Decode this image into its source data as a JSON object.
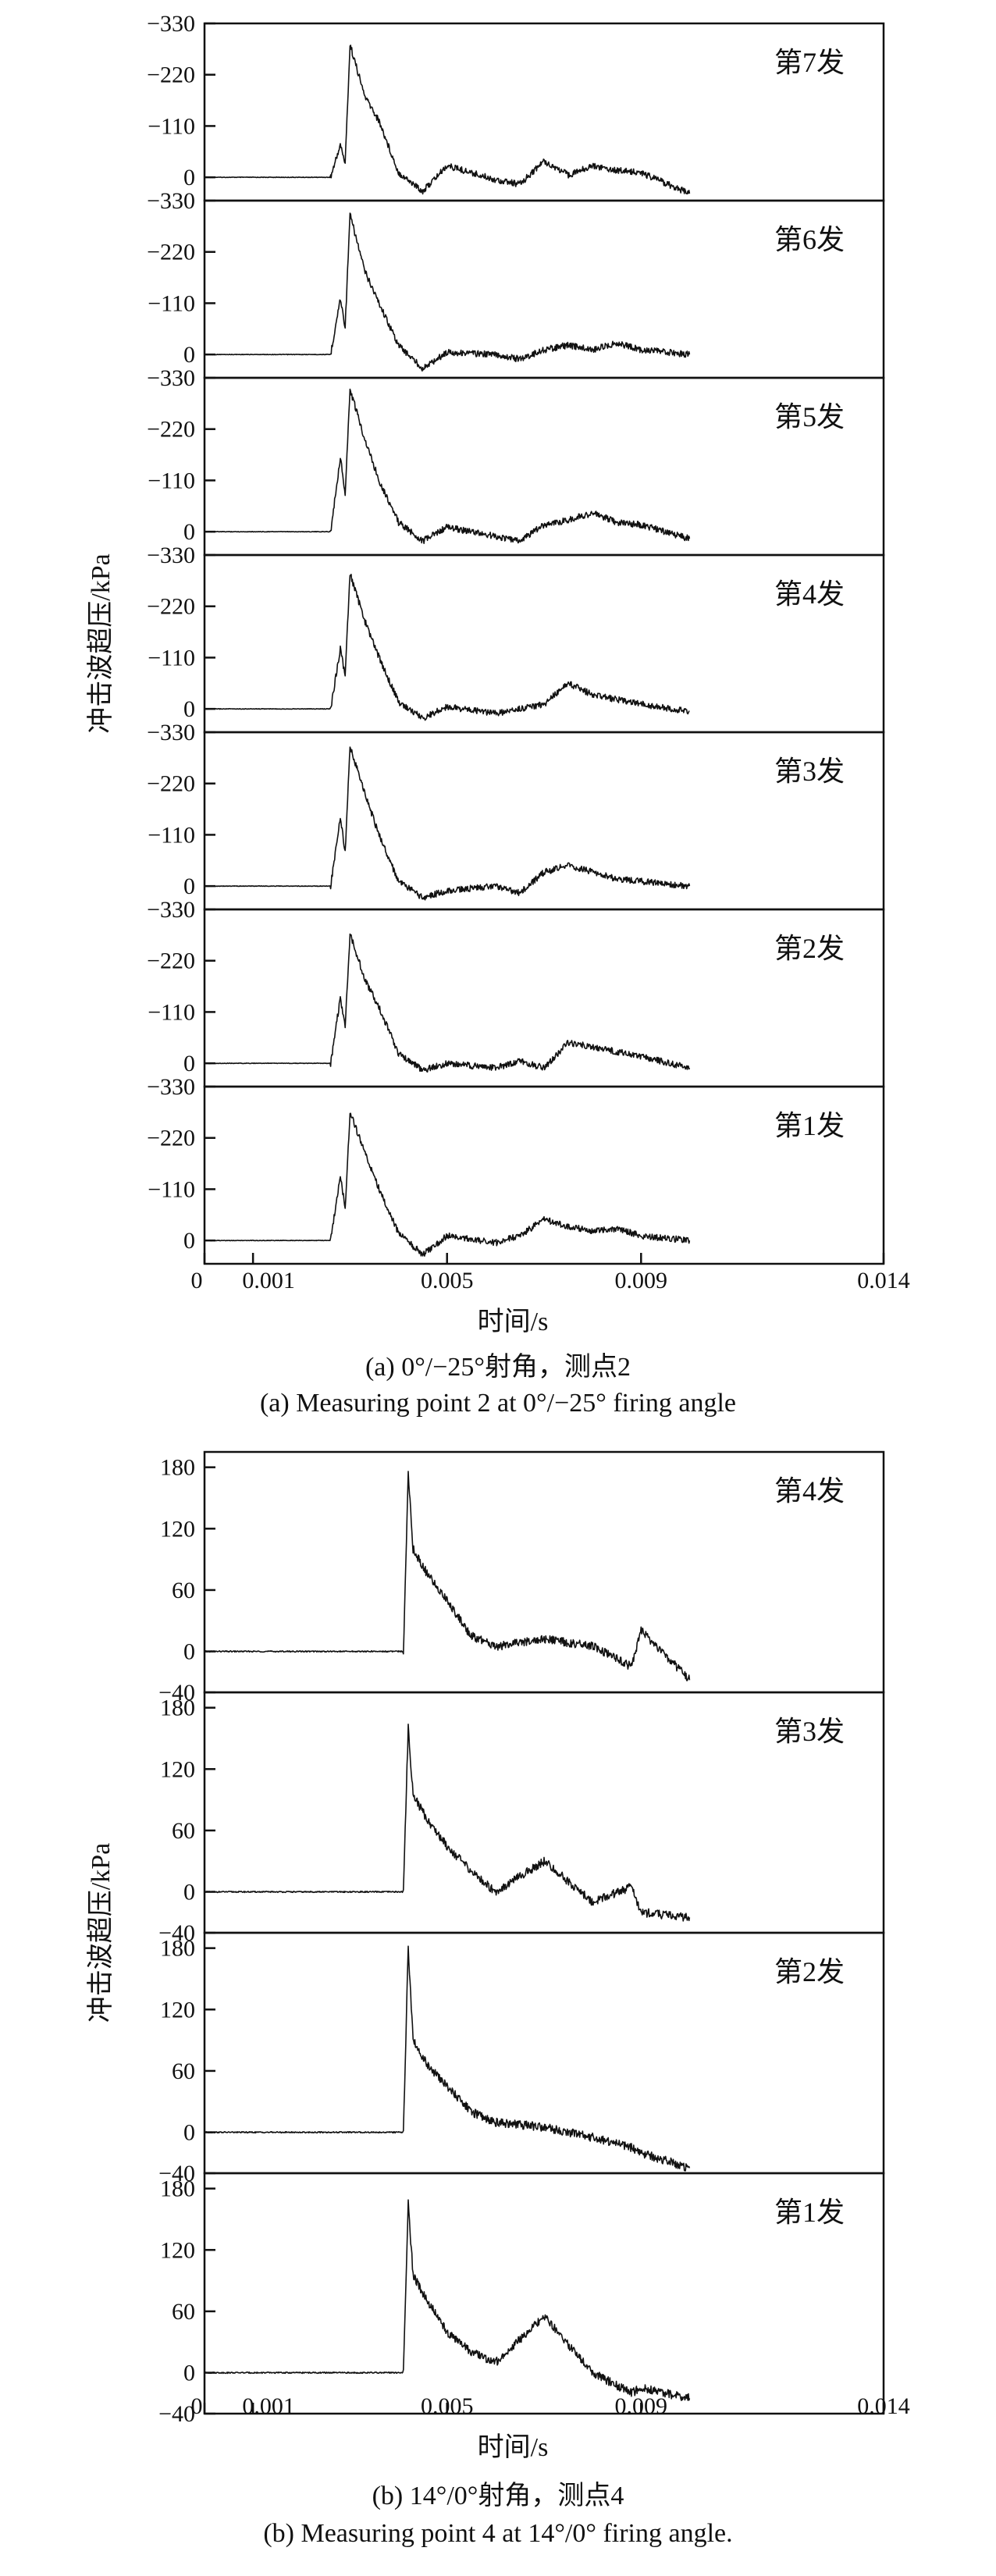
{
  "chart_data": [
    {
      "type": "line",
      "caption_cn": "(a) 0°/−25°射角，测点2",
      "caption_en": "(a) Measuring point 2 at  0°/−25° firing angle",
      "xlabel": "时间/s",
      "ylabel": "冲击波超压/kPa",
      "x_ticks": [
        0,
        0.001,
        0.005,
        0.009,
        0.014
      ],
      "x_tick_labels": [
        "0",
        "0.001",
        "0.005",
        "0.009",
        "0.014"
      ],
      "xlim": [
        0,
        0.014
      ],
      "y_ticks": [
        0,
        -110,
        -220,
        -330
      ],
      "y_tick_labels": [
        "0",
        "−110",
        "−220",
        "−330"
      ],
      "ylim": [
        50,
        -330
      ],
      "series": [
        {
          "name": "第7发",
          "x": [
            0,
            0.0026,
            0.0028,
            0.0029,
            0.003,
            0.0033,
            0.0036,
            0.004,
            0.0045,
            0.005,
            0.006,
            0.0065,
            0.007,
            0.0075,
            0.008,
            0.0085,
            0.009,
            0.01
          ],
          "values": [
            0,
            0,
            -70,
            -30,
            -285,
            -175,
            -120,
            -10,
            30,
            -25,
            5,
            15,
            -35,
            -5,
            -25,
            -15,
            -10,
            35
          ]
        },
        {
          "name": "第6发",
          "x": [
            0,
            0.0026,
            0.0028,
            0.0029,
            0.003,
            0.0033,
            0.0036,
            0.004,
            0.0045,
            0.005,
            0.006,
            0.0065,
            0.007,
            0.0075,
            0.008,
            0.0085,
            0.009,
            0.01
          ],
          "values": [
            0,
            0,
            -120,
            -60,
            -300,
            -180,
            -110,
            -20,
            30,
            -5,
            0,
            10,
            -10,
            -20,
            -10,
            -25,
            -10,
            0
          ]
        },
        {
          "name": "第5发",
          "x": [
            0,
            0.0026,
            0.0028,
            0.0029,
            0.003,
            0.0033,
            0.0036,
            0.004,
            0.0045,
            0.005,
            0.006,
            0.0065,
            0.007,
            0.0075,
            0.008,
            0.0085,
            0.009,
            0.01
          ],
          "values": [
            0,
            0,
            -160,
            -80,
            -305,
            -200,
            -110,
            -20,
            20,
            -10,
            10,
            20,
            -15,
            -25,
            -40,
            -20,
            -15,
            15
          ]
        },
        {
          "name": "第4发",
          "x": [
            0,
            0.0026,
            0.0028,
            0.0029,
            0.003,
            0.0033,
            0.0036,
            0.004,
            0.0045,
            0.005,
            0.006,
            0.0065,
            0.007,
            0.0075,
            0.008,
            0.0085,
            0.009,
            0.01
          ],
          "values": [
            0,
            0,
            -130,
            -70,
            -290,
            -190,
            -110,
            -15,
            20,
            -5,
            10,
            0,
            -10,
            -55,
            -30,
            -20,
            -10,
            5
          ]
        },
        {
          "name": "第3发",
          "x": [
            0,
            0.0026,
            0.0028,
            0.0029,
            0.003,
            0.0033,
            0.0036,
            0.004,
            0.0045,
            0.005,
            0.006,
            0.0065,
            0.007,
            0.0075,
            0.008,
            0.0085,
            0.009,
            0.01
          ],
          "values": [
            0,
            0,
            -150,
            -70,
            -300,
            -200,
            -110,
            -10,
            25,
            10,
            0,
            15,
            -30,
            -45,
            -30,
            -15,
            -10,
            0
          ]
        },
        {
          "name": "第2发",
          "x": [
            0,
            0.0026,
            0.0028,
            0.0029,
            0.003,
            0.0033,
            0.0036,
            0.004,
            0.0045,
            0.005,
            0.006,
            0.0065,
            0.007,
            0.0075,
            0.008,
            0.0085,
            0.009,
            0.01
          ],
          "values": [
            0,
            0,
            -140,
            -80,
            -280,
            -180,
            -120,
            -20,
            15,
            0,
            10,
            -5,
            10,
            -45,
            -35,
            -25,
            -15,
            10
          ]
        },
        {
          "name": "第1发",
          "x": [
            0,
            0.0026,
            0.0028,
            0.0029,
            0.003,
            0.0033,
            0.0036,
            0.004,
            0.0045,
            0.005,
            0.006,
            0.0065,
            0.007,
            0.0075,
            0.008,
            0.0085,
            0.009,
            0.01
          ],
          "values": [
            0,
            0,
            -140,
            -70,
            -275,
            -190,
            -110,
            -15,
            30,
            -10,
            5,
            -10,
            -45,
            -30,
            -20,
            -25,
            -10,
            0
          ]
        }
      ]
    },
    {
      "type": "line",
      "caption_cn": "(b) 14°/0°射角，测点4",
      "caption_en": "(b) Measuring point 4 at 14°/0° firing angle.",
      "xlabel": "时间/s",
      "ylabel": "冲击波超压/kPa",
      "x_ticks": [
        0,
        0.001,
        0.005,
        0.009,
        0.014
      ],
      "x_tick_labels": [
        "0",
        "0.001",
        "0.005",
        "0.009",
        "0.014"
      ],
      "xlim": [
        0,
        0.014
      ],
      "y_ticks": [
        -40,
        0,
        60,
        120,
        180
      ],
      "y_tick_labels": [
        "−40",
        "0",
        "60",
        "120",
        "180"
      ],
      "ylim": [
        -40,
        195
      ],
      "series": [
        {
          "name": "第4发",
          "x": [
            0,
            0.0041,
            0.0042,
            0.0043,
            0.0046,
            0.005,
            0.0055,
            0.006,
            0.007,
            0.008,
            0.0088,
            0.009,
            0.01
          ],
          "values": [
            0,
            0,
            175,
            100,
            75,
            50,
            15,
            5,
            12,
            5,
            -15,
            20,
            -28
          ]
        },
        {
          "name": "第3发",
          "x": [
            0,
            0.0041,
            0.0042,
            0.0043,
            0.0046,
            0.005,
            0.0055,
            0.006,
            0.007,
            0.008,
            0.0088,
            0.009,
            0.01
          ],
          "values": [
            0,
            0,
            160,
            95,
            70,
            45,
            20,
            0,
            30,
            -10,
            5,
            -20,
            -25
          ]
        },
        {
          "name": "第2发",
          "x": [
            0,
            0.0041,
            0.0042,
            0.0043,
            0.0046,
            0.005,
            0.0055,
            0.006,
            0.007,
            0.008,
            0.0088,
            0.009,
            0.01
          ],
          "values": [
            0,
            0,
            180,
            90,
            65,
            45,
            20,
            10,
            5,
            -5,
            -15,
            -20,
            -35
          ]
        },
        {
          "name": "第1发",
          "x": [
            0,
            0.0041,
            0.0042,
            0.0043,
            0.0046,
            0.005,
            0.0055,
            0.006,
            0.007,
            0.008,
            0.0088,
            0.009,
            0.01
          ],
          "values": [
            0,
            0,
            165,
            95,
            70,
            40,
            20,
            10,
            55,
            0,
            -20,
            -15,
            -25
          ]
        }
      ]
    }
  ]
}
